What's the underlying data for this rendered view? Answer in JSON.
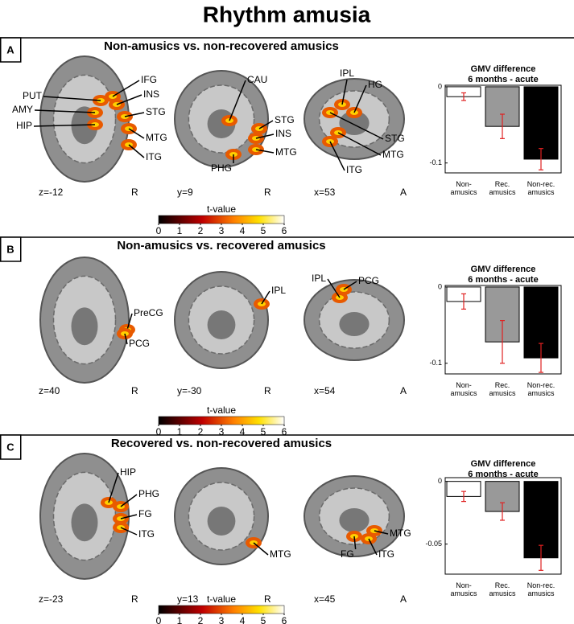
{
  "title": "Rhythm amusia",
  "panels": [
    {
      "label": "A",
      "heading": "Non-amusics vs. non-recovered amusics",
      "slices": [
        {
          "coord": "z=-12",
          "orient": "R",
          "regions": [
            "PUT",
            "AMY",
            "HIP",
            "IFG",
            "INS",
            "STG",
            "MTG",
            "ITG"
          ]
        },
        {
          "coord": "y=9",
          "orient": "R",
          "regions": [
            "CAU",
            "STG",
            "INS",
            "MTG",
            "PHG"
          ]
        },
        {
          "coord": "x=53",
          "orient": "A",
          "regions": [
            "IPL",
            "HG",
            "STG",
            "MTG",
            "ITG"
          ]
        }
      ],
      "colorbar": {
        "label": "t-value",
        "clim": [
          0,
          6
        ],
        "ticks": [
          0,
          1,
          2,
          3,
          4,
          5,
          6
        ]
      }
    },
    {
      "label": "B",
      "heading": "Non-amusics vs. recovered amusics",
      "slices": [
        {
          "coord": "z=40",
          "orient": "R",
          "regions": [
            "PreCG",
            "PCG"
          ]
        },
        {
          "coord": "y=-30",
          "orient": "R",
          "regions": [
            "IPL"
          ]
        },
        {
          "coord": "x=54",
          "orient": "A",
          "regions": [
            "IPL",
            "PCG"
          ]
        }
      ],
      "colorbar": {
        "label": "t-value",
        "clim": [
          0,
          6
        ],
        "ticks": [
          0,
          1,
          2,
          3,
          4,
          5,
          6
        ]
      }
    },
    {
      "label": "C",
      "heading": "Recovered vs. non-recovered amusics",
      "slices": [
        {
          "coord": "z=-23",
          "orient": "R",
          "regions": [
            "HIP",
            "PHG",
            "FG",
            "ITG"
          ]
        },
        {
          "coord": "y=13",
          "orient": "R",
          "regions": [
            "MTG"
          ]
        },
        {
          "coord": "x=45",
          "orient": "A",
          "regions": [
            "MTG",
            "FG",
            "ITG"
          ]
        }
      ],
      "colorbar": {
        "label": "t-value",
        "clim": [
          0,
          6
        ],
        "ticks": [
          0,
          1,
          2,
          3,
          4,
          5,
          6
        ]
      }
    }
  ],
  "chart_data": [
    {
      "type": "bar",
      "title": "GMV difference",
      "subtitle": "6 months - acute",
      "categories": [
        "Non-\namusics",
        "Rec.\namusics",
        "Non-rec.\namusics"
      ],
      "values": [
        -0.013,
        -0.052,
        -0.095
      ],
      "errors": [
        0.005,
        0.016,
        0.014
      ],
      "colors": [
        "#ffffff",
        "#999999",
        "#000000"
      ],
      "error_color": "#e02020",
      "ylim": [
        -0.113,
        0.002
      ],
      "yticks": [
        0,
        -0.1
      ]
    },
    {
      "type": "bar",
      "title": "GMV difference",
      "subtitle": "6 months - acute",
      "categories": [
        "Non-\namusics",
        "Rec.\namusics",
        "Non-rec.\namusics"
      ],
      "values": [
        -0.019,
        -0.072,
        -0.093
      ],
      "errors": [
        0.01,
        0.028,
        0.019
      ],
      "colors": [
        "#ffffff",
        "#999999",
        "#000000"
      ],
      "error_color": "#e02020",
      "ylim": [
        -0.114,
        0.002
      ],
      "yticks": [
        0,
        -0.1
      ]
    },
    {
      "type": "bar",
      "title": "GMV difference",
      "subtitle": "6 months - acute",
      "categories": [
        "Non-\namusics",
        "Rec.\namusics",
        "Non-rec.\namusics"
      ],
      "values": [
        -0.012,
        -0.024,
        -0.061
      ],
      "errors": [
        0.004,
        0.007,
        0.01
      ],
      "colors": [
        "#ffffff",
        "#999999",
        "#000000"
      ],
      "error_color": "#e02020",
      "ylim": [
        -0.074,
        0.003
      ],
      "yticks": [
        0,
        -0.05
      ]
    }
  ]
}
